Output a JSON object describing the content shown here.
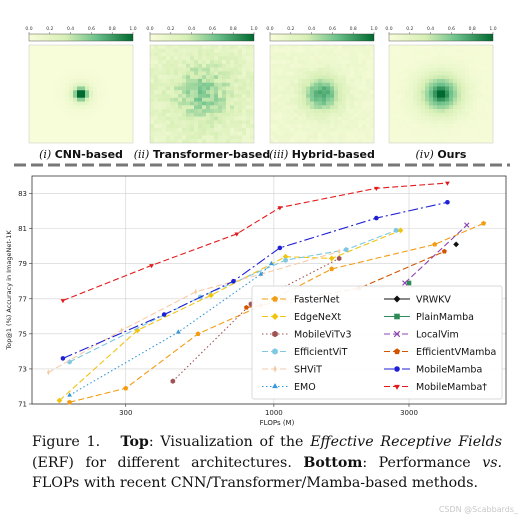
{
  "erf_panels": [
    {
      "numeral": "(i)",
      "label": "CNN-based",
      "spread": 0.05,
      "noise": 0.0
    },
    {
      "numeral": "(ii)",
      "label": "Transformer-based",
      "spread": 0.9,
      "noise": 0.55
    },
    {
      "numeral": "(iii)",
      "label": "Hybrid-based",
      "spread": 0.35,
      "noise": 0.25
    },
    {
      "numeral": "(iv)",
      "label": "Ours",
      "spread": 0.45,
      "noise": 0.08
    }
  ],
  "colorbar_ticks": [
    "0.0",
    "0.2",
    "0.4",
    "0.6",
    "0.8",
    "1.0"
  ],
  "chart_data": {
    "type": "line",
    "xlabel": "FLOPs (M)",
    "ylabel": "Top@1 (%) Accuracy in ImageNet-1K",
    "x_scale": "log",
    "xlim": [
      140,
      6600
    ],
    "ylim": [
      71,
      84
    ],
    "x_ticks": [
      {
        "v": 300,
        "label": "300"
      },
      {
        "v": 1000,
        "label": "1000"
      },
      {
        "v": 3000,
        "label": "3000"
      }
    ],
    "y_ticks": [
      71,
      73,
      75,
      77,
      79,
      81,
      83
    ],
    "grid": true,
    "legend_placement": "bottom-right",
    "series": [
      {
        "name": "FasterNet",
        "color": "#f39c12",
        "marker": "pentagon",
        "dash": "6,3",
        "points": [
          [
            190,
            71.1
          ],
          [
            300,
            71.9
          ],
          [
            540,
            75.0
          ],
          [
            900,
            76.6
          ],
          [
            1600,
            78.7
          ],
          [
            3700,
            80.1
          ],
          [
            5500,
            81.3
          ]
        ]
      },
      {
        "name": "EdgeNeXt",
        "color": "#f1c40f",
        "marker": "diamond",
        "dash": "6,3",
        "points": [
          [
            175,
            71.2
          ],
          [
            330,
            75.2
          ],
          [
            600,
            77.2
          ],
          [
            1100,
            79.4
          ],
          [
            1600,
            79.3
          ],
          [
            2800,
            80.9
          ]
        ]
      },
      {
        "name": "MobileViTv3",
        "color": "#a05252",
        "marker": "hexagon",
        "dash": "1.5,2.5",
        "points": [
          [
            440,
            72.3
          ],
          [
            830,
            76.7
          ],
          [
            1700,
            79.3
          ]
        ]
      },
      {
        "name": "EfficientViT",
        "color": "#7ec8e3",
        "marker": "hexagon",
        "dash": "6,3",
        "points": [
          [
            190,
            73.4
          ],
          [
            550,
            77.1
          ],
          [
            1100,
            79.2
          ],
          [
            1800,
            79.8
          ],
          [
            2700,
            80.9
          ]
        ]
      },
      {
        "name": "SHViT",
        "color": "#f5cba7",
        "marker": "thin-diamond",
        "dash": "6,3",
        "points": [
          [
            160,
            72.8
          ],
          [
            290,
            75.2
          ],
          [
            530,
            77.4
          ],
          [
            900,
            78.4
          ],
          [
            1700,
            79.7
          ]
        ]
      },
      {
        "name": "EMO",
        "color": "#3498db",
        "marker": "triangle",
        "dash": "1.5,2.5",
        "points": [
          [
            190,
            71.5
          ],
          [
            460,
            75.1
          ],
          [
            900,
            78.4
          ],
          [
            980,
            79.0
          ]
        ]
      },
      {
        "name": "VRWKV",
        "color": "#111111",
        "marker": "diamond",
        "dash": "",
        "points": [
          [
            4400,
            80.1
          ]
        ]
      },
      {
        "name": "PlainMamba",
        "color": "#2e8b57",
        "marker": "square",
        "dash": "",
        "points": [
          [
            3000,
            77.9
          ]
        ]
      },
      {
        "name": "LocalVim",
        "color": "#8e44ad",
        "marker": "x",
        "dash": "6,3",
        "points": [
          [
            2900,
            77.9
          ],
          [
            4800,
            81.2
          ]
        ]
      },
      {
        "name": "EfficientVMamba",
        "color": "#d35400",
        "marker": "pentagon",
        "dash": "6,3",
        "points": [
          [
            800,
            76.5
          ],
          [
            2000,
            77.6
          ],
          [
            4000,
            79.7
          ]
        ]
      },
      {
        "name": "MobileMamba",
        "color": "#1f1fd6",
        "marker": "circle",
        "dash": "10,3,2,3",
        "points": [
          [
            180,
            73.6
          ],
          [
            410,
            76.1
          ],
          [
            720,
            78.0
          ],
          [
            1050,
            79.9
          ],
          [
            2300,
            81.6
          ],
          [
            4100,
            82.5
          ]
        ]
      },
      {
        "name": "MobileMamba†",
        "color": "#e31a1c",
        "marker": "triangle-down",
        "dash": "6,3",
        "points": [
          [
            180,
            76.9
          ],
          [
            370,
            78.9
          ],
          [
            740,
            80.7
          ],
          [
            1050,
            82.2
          ],
          [
            2300,
            83.3
          ],
          [
            4100,
            83.6
          ]
        ]
      }
    ]
  },
  "caption": {
    "figure_label": "Figure 1.",
    "top_label": "Top",
    "part1": ": Visualization of the ",
    "erf_term": "Effective Receptive Fields",
    "part2": " (ERF) for different architectures. ",
    "bottom_label": "Bottom",
    "part3": ": Performance ",
    "vs_term": "vs.",
    "part4": " FLOPs with recent CNN/Transformer/Mamba-based methods."
  },
  "watermark": "CSDN @Scabbards_"
}
